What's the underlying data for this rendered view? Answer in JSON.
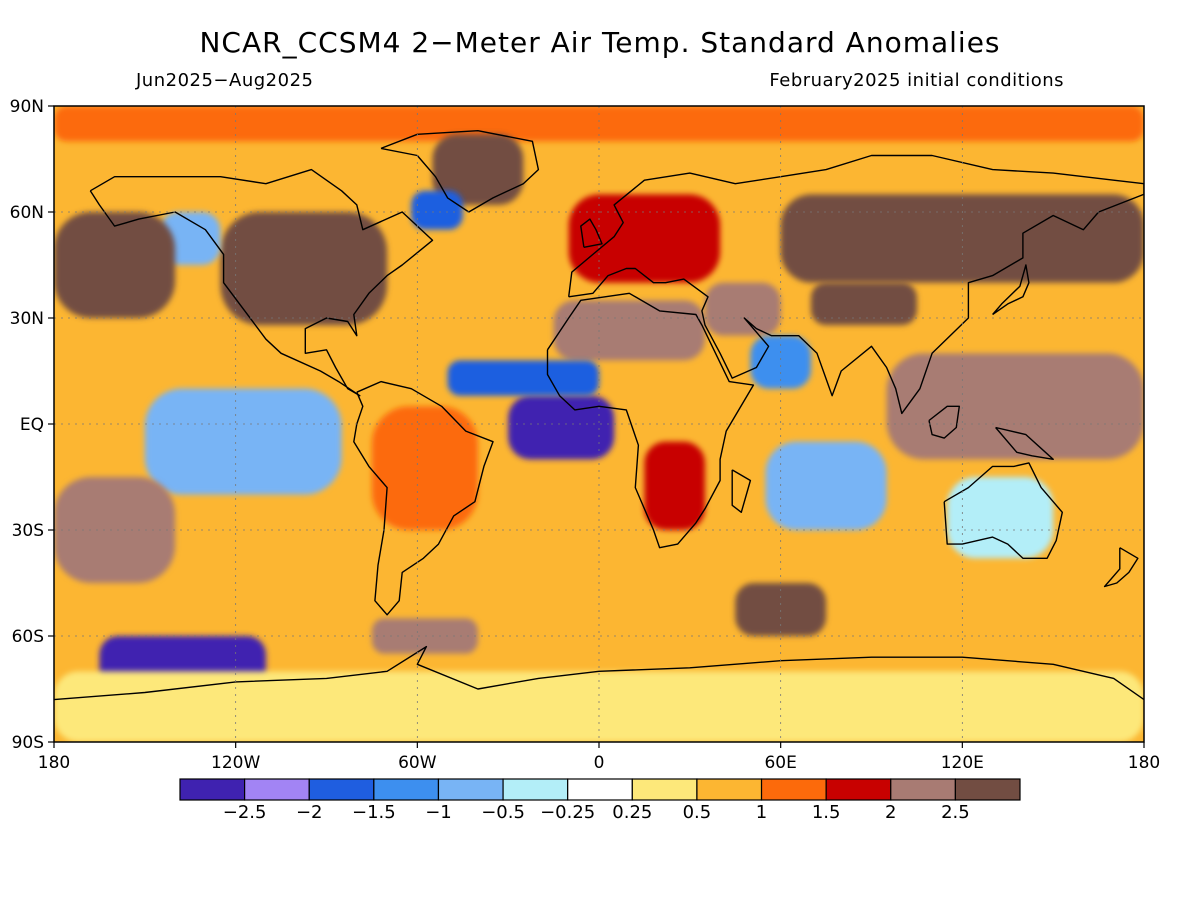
{
  "title": "NCAR_CCSM4 2−Meter Air Temp. Standard Anomalies",
  "subtitle_left": "Jun2025−Aug2025",
  "subtitle_right": "February2025 initial conditions",
  "map": {
    "lon_range": [
      -180,
      180
    ],
    "lat_range": [
      -90,
      90
    ],
    "lat_ticks": [
      {
        "lat": 90,
        "label": "90N"
      },
      {
        "lat": 60,
        "label": "60N"
      },
      {
        "lat": 30,
        "label": "30N"
      },
      {
        "lat": 0,
        "label": "EQ"
      },
      {
        "lat": -30,
        "label": "30S"
      },
      {
        "lat": -60,
        "label": "60S"
      },
      {
        "lat": -90,
        "label": "90S"
      }
    ],
    "lon_ticks": [
      {
        "lon": -180,
        "label": "180"
      },
      {
        "lon": -120,
        "label": "120W"
      },
      {
        "lon": -60,
        "label": "60W"
      },
      {
        "lon": 0,
        "label": "0"
      },
      {
        "lon": 60,
        "label": "60E"
      },
      {
        "lon": 120,
        "label": "120E"
      },
      {
        "lon": 180,
        "label": "180"
      }
    ],
    "anomaly_regions": [
      {
        "name": "north-pole-band",
        "value": 1.2,
        "lon": [
          -180,
          180
        ],
        "lat": [
          80,
          90
        ]
      },
      {
        "name": "greenland",
        "value": 2.8,
        "lon": [
          -55,
          -25
        ],
        "lat": [
          62,
          82
        ]
      },
      {
        "name": "labrador-sea",
        "value": -1.6,
        "lon": [
          -62,
          -45
        ],
        "lat": [
          55,
          66
        ]
      },
      {
        "name": "north-america",
        "value": 2.6,
        "lon": [
          -125,
          -70
        ],
        "lat": [
          28,
          60
        ]
      },
      {
        "name": "alaska-gulf",
        "value": -0.8,
        "lon": [
          -145,
          -125
        ],
        "lat": [
          45,
          60
        ]
      },
      {
        "name": "north-pacific-west",
        "value": 2.7,
        "lon": [
          -180,
          -140
        ],
        "lat": [
          30,
          60
        ]
      },
      {
        "name": "europe",
        "value": 1.8,
        "lon": [
          -10,
          40
        ],
        "lat": [
          40,
          65
        ]
      },
      {
        "name": "siberia",
        "value": 2.9,
        "lon": [
          60,
          180
        ],
        "lat": [
          40,
          65
        ]
      },
      {
        "name": "sahara",
        "value": 2.4,
        "lon": [
          -15,
          35
        ],
        "lat": [
          18,
          35
        ]
      },
      {
        "name": "middle-east",
        "value": 2.1,
        "lon": [
          35,
          60
        ],
        "lat": [
          25,
          40
        ]
      },
      {
        "name": "tibet",
        "value": 2.6,
        "lon": [
          70,
          105
        ],
        "lat": [
          28,
          40
        ]
      },
      {
        "name": "arabian-sea",
        "value": -1.3,
        "lon": [
          50,
          70
        ],
        "lat": [
          10,
          25
        ]
      },
      {
        "name": "gulf-of-guinea",
        "value": -2.7,
        "lon": [
          -30,
          5
        ],
        "lat": [
          -10,
          8
        ]
      },
      {
        "name": "tropical-atlantic",
        "value": -1.8,
        "lon": [
          -50,
          0
        ],
        "lat": [
          8,
          18
        ]
      },
      {
        "name": "maritime-continent",
        "value": 2.0,
        "lon": [
          95,
          180
        ],
        "lat": [
          -10,
          20
        ]
      },
      {
        "name": "east-pacific-tropics",
        "value": -0.6,
        "lon": [
          -150,
          -85
        ],
        "lat": [
          -20,
          10
        ]
      },
      {
        "name": "south-america",
        "value": 1.4,
        "lon": [
          -75,
          -40
        ],
        "lat": [
          -30,
          5
        ]
      },
      {
        "name": "southern-africa",
        "value": 1.6,
        "lon": [
          15,
          35
        ],
        "lat": [
          -30,
          -5
        ]
      },
      {
        "name": "indian-ocean-south",
        "value": -0.9,
        "lon": [
          55,
          95
        ],
        "lat": [
          -30,
          -5
        ]
      },
      {
        "name": "australia",
        "value": -0.4,
        "lon": [
          115,
          150
        ],
        "lat": [
          -38,
          -15
        ]
      },
      {
        "name": "south-pacific-east",
        "value": 2.4,
        "lon": [
          -180,
          -140
        ],
        "lat": [
          -45,
          -15
        ]
      },
      {
        "name": "southern-indian-ocean",
        "value": 2.5,
        "lon": [
          45,
          75
        ],
        "lat": [
          -60,
          -45
        ]
      },
      {
        "name": "drake-passage",
        "value": 2.3,
        "lon": [
          -75,
          -40
        ],
        "lat": [
          -65,
          -55
        ]
      },
      {
        "name": "ross-amundsen",
        "value": -2.8,
        "lon": [
          -165,
          -110
        ],
        "lat": [
          -75,
          -60
        ]
      },
      {
        "name": "antarctica",
        "value": 0.3,
        "lon": [
          -180,
          180
        ],
        "lat": [
          -90,
          -70
        ]
      }
    ]
  },
  "colorbar": {
    "colors": [
      "#3f22b0",
      "#a284f4",
      "#1f5ee0",
      "#3d8fef",
      "#78b4f5",
      "#b3eef8",
      "#ffffff",
      "#fde87a",
      "#fcb632",
      "#fc6a0b",
      "#c80100",
      "#a87b73",
      "#724d42"
    ],
    "labels": [
      "−2.5",
      "−2",
      "−1.5",
      "−1",
      "−0.5",
      "−0.25",
      "0.25",
      "0.5",
      "1",
      "1.5",
      "2",
      "2.5"
    ],
    "bounds": [
      -2.5,
      -2,
      -1.5,
      -1,
      -0.5,
      -0.25,
      0.25,
      0.5,
      1,
      1.5,
      2,
      2.5
    ]
  }
}
